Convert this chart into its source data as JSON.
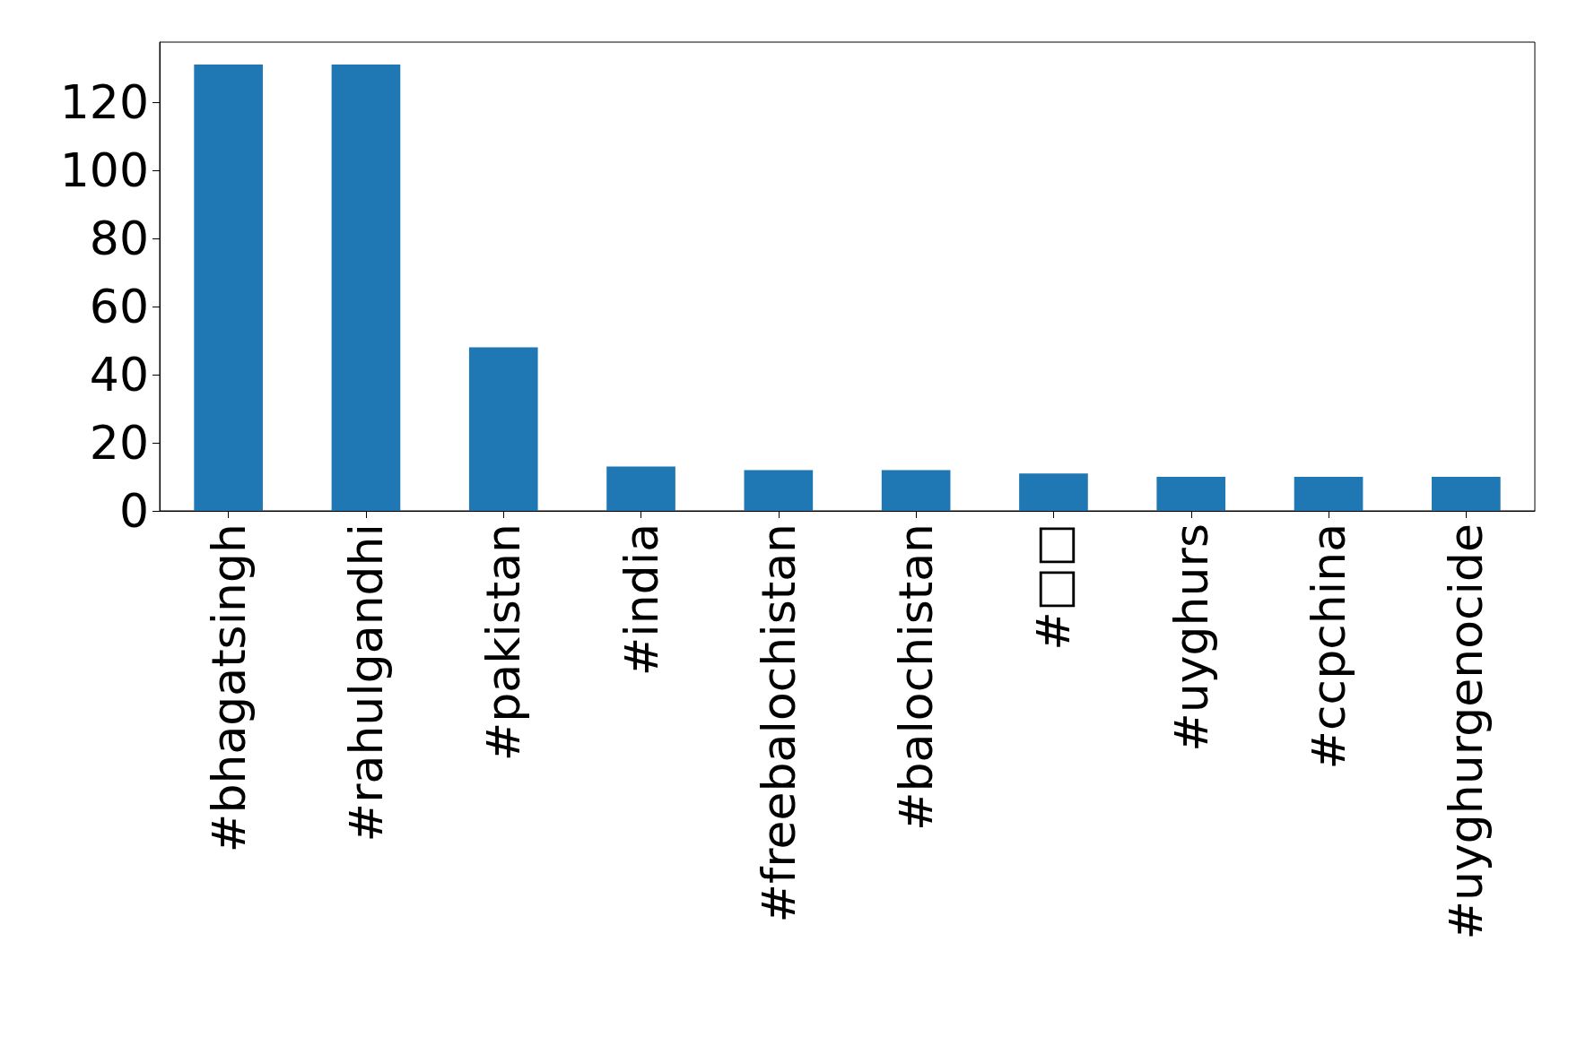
{
  "chart_data": {
    "type": "bar",
    "categories": [
      "#bhagatsingh",
      "#rahulgandhi",
      "#pakistan",
      "#india",
      "#freebalochistan",
      "#balochistan",
      "#□□",
      "#uyghurs",
      "#ccpchina",
      "#uyghurgenocide"
    ],
    "values": [
      131,
      131,
      48,
      13,
      12,
      12,
      11,
      10,
      10,
      10
    ],
    "color": "#1f77b4",
    "ylim": [
      0,
      137.6
    ],
    "yticks": [
      0,
      20,
      40,
      60,
      80,
      100,
      120
    ]
  }
}
